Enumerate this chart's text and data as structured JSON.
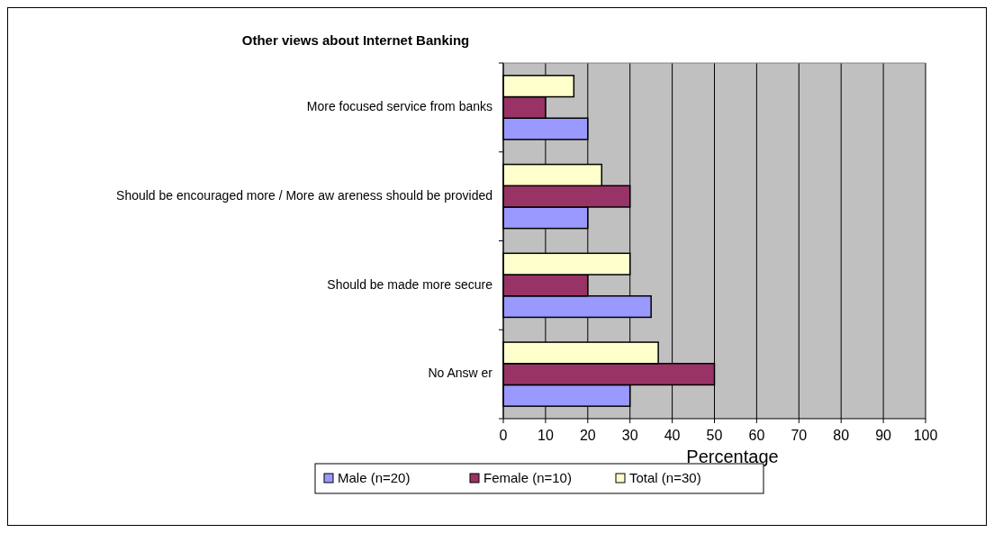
{
  "chart_data": {
    "type": "bar",
    "orientation": "horizontal",
    "title": "Other views about Internet Banking",
    "xlabel": "Percentage",
    "categories": [
      "More focused service from banks",
      "Should be encouraged more  / More aw areness should be provided",
      "Should be made more secure",
      "No Answ er"
    ],
    "series": [
      {
        "name": "Male (n=20)",
        "color": "#9999ff",
        "values": [
          20,
          20,
          35,
          30
        ]
      },
      {
        "name": "Female (n=10)",
        "color": "#993366",
        "values": [
          10,
          30,
          20,
          50
        ]
      },
      {
        "name": "Total (n=30)",
        "color": "#ffffcc",
        "values": [
          16.7,
          23.3,
          30,
          36.7
        ]
      }
    ],
    "xlim": [
      0,
      100
    ],
    "xticks": [
      0,
      10,
      20,
      30,
      40,
      50,
      60,
      70,
      80,
      90,
      100
    ],
    "grid": "x",
    "legend": "bottom"
  }
}
